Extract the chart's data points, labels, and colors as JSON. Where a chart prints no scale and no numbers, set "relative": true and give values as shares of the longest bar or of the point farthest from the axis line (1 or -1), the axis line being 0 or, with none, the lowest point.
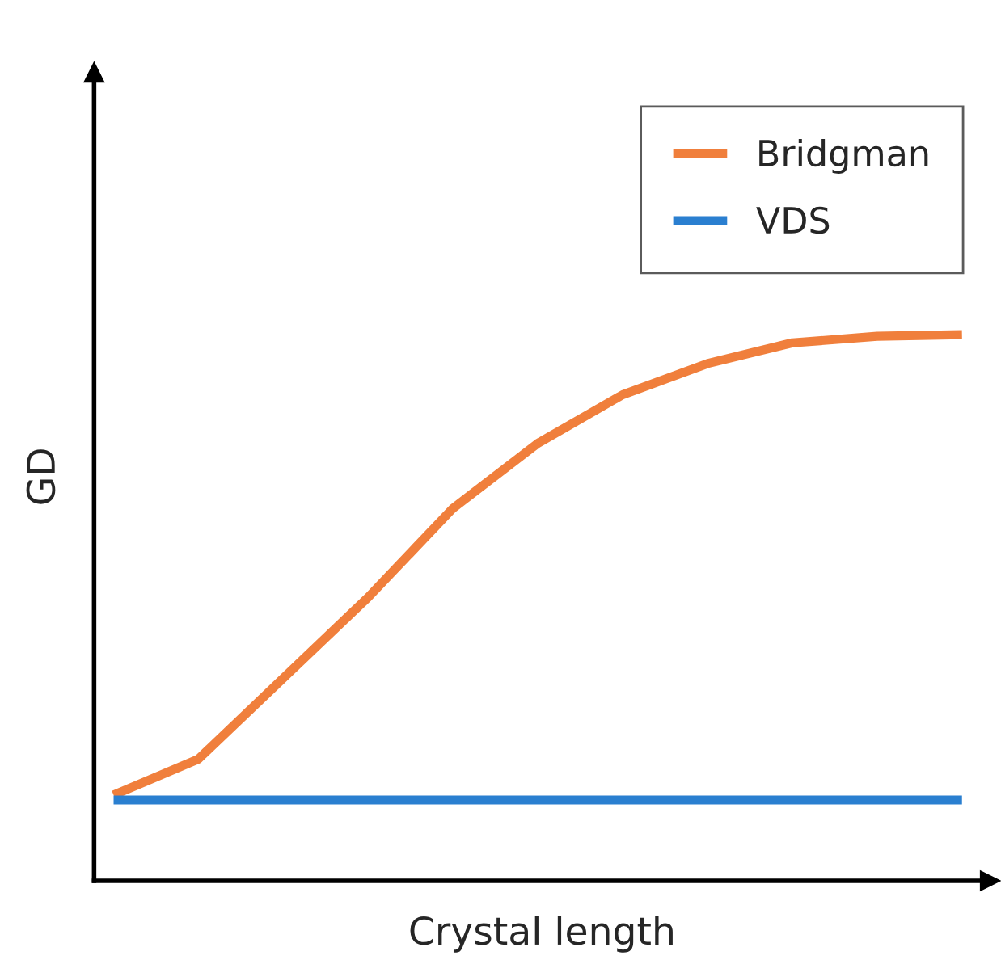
{
  "chart_data": {
    "type": "line",
    "xlabel": "Crystal length",
    "ylabel": "GD",
    "relative": true,
    "legend": "top right",
    "grid": false,
    "marker": "none",
    "line_style": "solid",
    "categories": [
      null,
      null,
      null,
      null,
      null,
      null,
      null,
      null,
      null,
      null,
      null
    ],
    "series": [
      {
        "name": "Bridgman",
        "color": "#f07f3c",
        "values": [
          0.157,
          0.223,
          0.371,
          0.519,
          0.682,
          0.801,
          0.89,
          0.947,
          0.985,
          0.997,
          1
        ]
      },
      {
        "name": "VDS",
        "color": "#2a7fd0",
        "values": [
          0.148,
          0.148,
          0.148,
          0.148,
          0.148,
          0.148,
          0.148,
          0.148,
          0.148,
          0.148,
          0.148
        ]
      }
    ]
  }
}
